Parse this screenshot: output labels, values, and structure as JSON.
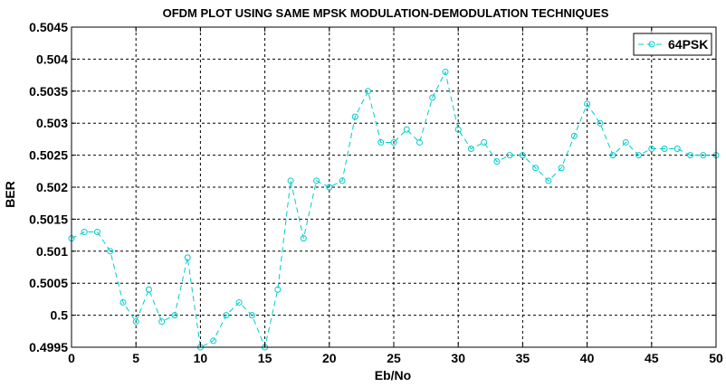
{
  "chart_data": {
    "type": "line",
    "title": "OFDM PLOT USING SAME MPSK MODULATION-DEMODULATION TECHNIQUES",
    "xlabel": "Eb/No",
    "ylabel": "BER",
    "xlim": [
      0,
      50
    ],
    "ylim": [
      0.4995,
      0.5045
    ],
    "xticks": [
      0,
      5,
      10,
      15,
      20,
      25,
      30,
      35,
      40,
      45,
      50
    ],
    "xtick_labels": [
      "0",
      "5",
      "10",
      "15",
      "20",
      "25",
      "30",
      "35",
      "40",
      "45",
      "50"
    ],
    "yticks": [
      0.4995,
      0.5,
      0.5005,
      0.501,
      0.5015,
      0.502,
      0.5025,
      0.503,
      0.5035,
      0.504,
      0.5045
    ],
    "ytick_labels": [
      "0.4995",
      "0.5",
      "0.5005",
      "0.501",
      "0.5015",
      "0.502",
      "0.5025",
      "0.503",
      "0.5035",
      "0.504",
      "0.5045"
    ],
    "grid": true,
    "legend_position": "top-right",
    "series": [
      {
        "name": "64PSK",
        "color": "#00cccc",
        "line_style": "dashed",
        "marker": "circle",
        "x": [
          0,
          1,
          2,
          3,
          4,
          5,
          6,
          7,
          8,
          9,
          10,
          11,
          12,
          13,
          14,
          15,
          16,
          17,
          18,
          19,
          20,
          21,
          22,
          23,
          24,
          25,
          26,
          27,
          28,
          29,
          30,
          31,
          32,
          33,
          34,
          35,
          36,
          37,
          38,
          39,
          40,
          41,
          42,
          43,
          44,
          45,
          46,
          47,
          48,
          49,
          50
        ],
        "values": [
          0.5012,
          0.5013,
          0.5013,
          0.501,
          0.5002,
          0.4999,
          0.5004,
          0.4999,
          0.5,
          0.5009,
          0.4995,
          0.4996,
          0.5,
          0.5002,
          0.5,
          0.4995,
          0.5004,
          0.5021,
          0.5012,
          0.5021,
          0.502,
          0.5021,
          0.5031,
          0.5035,
          0.5027,
          0.5027,
          0.5029,
          0.5027,
          0.5034,
          0.5038,
          0.5029,
          0.5026,
          0.5027,
          0.5024,
          0.5025,
          0.5025,
          0.5023,
          0.5021,
          0.5023,
          0.5028,
          0.5033,
          0.503,
          0.5025,
          0.5027,
          0.5025,
          0.5026,
          0.5026,
          0.5026,
          0.5025,
          0.5025,
          0.5025
        ]
      }
    ]
  }
}
